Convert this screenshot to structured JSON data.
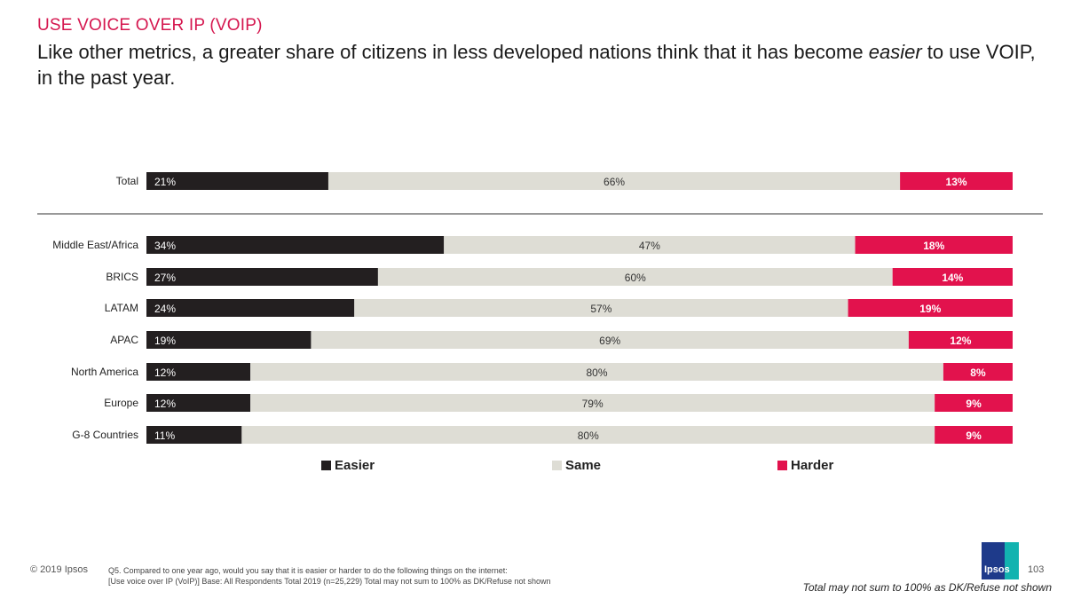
{
  "header": {
    "kicker": "USE VOICE OVER IP (VOIP)",
    "headline_before": "Like other metrics, a greater share of citizens in less developed nations think that it has become ",
    "headline_emphasis": "easier",
    "headline_after": " to use VOIP, in the past year."
  },
  "colors": {
    "easier": "#231f20",
    "same": "#deddd5",
    "harder": "#e2124d",
    "kicker": "#d5174f"
  },
  "chart_data": {
    "type": "bar",
    "orientation": "horizontal",
    "stacked": true,
    "normalized_100": true,
    "categories": [
      "Total",
      "Middle East/Africa",
      "BRICS",
      "LATAM",
      "APAC",
      "North America",
      "Europe",
      "G-8 Countries"
    ],
    "series": [
      {
        "name": "Easier",
        "values": [
          21,
          34,
          27,
          24,
          19,
          12,
          12,
          11
        ],
        "labels": [
          "21%",
          "34%",
          "27%",
          "24%",
          "19%",
          "12%",
          "12%",
          "11%"
        ]
      },
      {
        "name": "Same",
        "values": [
          66,
          47,
          60,
          57,
          69,
          80,
          79,
          80
        ],
        "labels": [
          "66%",
          "47%",
          "60%",
          "57%",
          "69%",
          "80%",
          "79%",
          "80%"
        ]
      },
      {
        "name": "Harder",
        "values": [
          13,
          18,
          14,
          19,
          12,
          8,
          9,
          9
        ],
        "labels": [
          "13%",
          "18%",
          "14%",
          "19%",
          "12%",
          "8%",
          "9%",
          "9%"
        ]
      }
    ],
    "legend_position": "bottom",
    "separator_after_first": true,
    "grid": false
  },
  "footer": {
    "copyright": "© 2019 Ipsos",
    "note_line1": "Q5. Compared to one year ago, would you say that it is easier or harder to do the following things on the internet:",
    "note_line2": "[Use voice over IP (VoIP)] Base: All Respondents Total 2019 (n=25,229) Total may not sum to 100% as DK/Refuse not shown",
    "logo_text": "Ipsos",
    "page_number": "103",
    "disclaimer": "Total may not sum to 100% as DK/Refuse not shown"
  }
}
